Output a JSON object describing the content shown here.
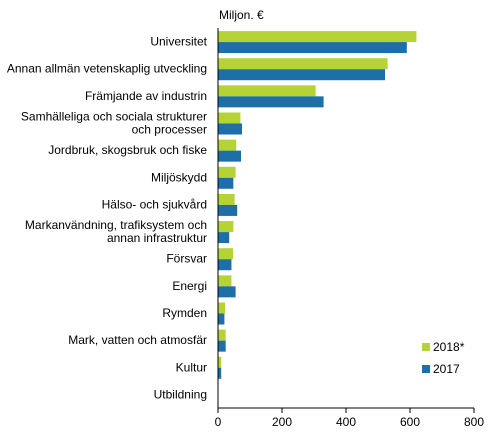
{
  "chart_data": {
    "type": "bar",
    "orientation": "horizontal",
    "unit_label": "Miljon. €",
    "categories": [
      "Universitet",
      "Annan allmän vetenskaplig utveckling",
      "Främjande av industrin",
      "Samhälleliga och sociala strukturer och processer",
      "Jordbruk, skogsbruk och fiske",
      "Miljöskydd",
      "Hälso- och sjukvård",
      "Markanvändning, trafiksystem och annan infrastruktur",
      "Försvar",
      "Energi",
      "Rymden",
      "Mark, vatten och atmosfär",
      "Kultur",
      "Utbildning"
    ],
    "category_lines": [
      [
        "Universitet"
      ],
      [
        "Annan allmän vetenskaplig utveckling"
      ],
      [
        "Främjande av industrin"
      ],
      [
        "Samhälleliga och sociala strukturer",
        "och processer"
      ],
      [
        "Jordbruk, skogsbruk och fiske"
      ],
      [
        "Miljöskydd"
      ],
      [
        "Hälso- och sjukvård"
      ],
      [
        "Markanvändning, trafiksystem och",
        "annan infrastruktur"
      ],
      [
        "Försvar"
      ],
      [
        "Energi"
      ],
      [
        "Rymden"
      ],
      [
        "Mark, vatten och atmosfär"
      ],
      [
        "Kultur"
      ],
      [
        "Utbildning"
      ]
    ],
    "series": [
      {
        "name": "2018*",
        "color": "#b5d334",
        "values": [
          620,
          530,
          305,
          70,
          57,
          55,
          52,
          48,
          47,
          42,
          22,
          24,
          10,
          0
        ]
      },
      {
        "name": "2017",
        "color": "#1e6fa8",
        "values": [
          590,
          522,
          330,
          75,
          72,
          48,
          60,
          35,
          42,
          55,
          20,
          24,
          10,
          0
        ]
      }
    ],
    "xlim": [
      0,
      800
    ],
    "xticks": [
      0,
      200,
      400,
      600,
      800
    ],
    "grid": false,
    "legend_position": "bottom-right"
  }
}
